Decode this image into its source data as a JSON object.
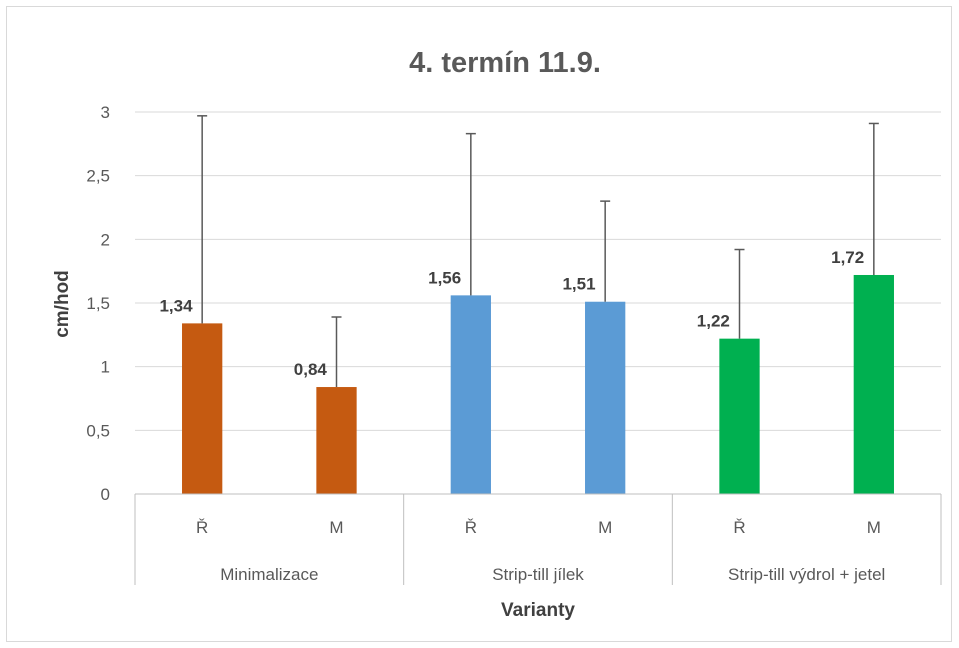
{
  "chart_data": {
    "type": "bar",
    "title": "4. termín 11.9.",
    "xlabel": "Varianty",
    "ylabel": "cm/hod",
    "ylim": [
      0,
      3
    ],
    "yticks": [
      0,
      0.5,
      1,
      1.5,
      2,
      2.5,
      3
    ],
    "ytick_labels": [
      "0",
      "0,5",
      "1",
      "1,5",
      "2",
      "2,5",
      "3"
    ],
    "grid": true,
    "legend": "none",
    "groups": [
      {
        "label": "Minimalizace",
        "color": "#C55A11"
      },
      {
        "label": "Strip-till jílek",
        "color": "#5B9BD5"
      },
      {
        "label": "Strip-till výdrol + jetel",
        "color": "#00B050"
      }
    ],
    "bars": [
      {
        "group": 0,
        "category": "Ř",
        "value": 1.34,
        "value_label": "1,34",
        "error_upper": 2.97
      },
      {
        "group": 0,
        "category": "M",
        "value": 0.84,
        "value_label": "0,84",
        "error_upper": 1.39
      },
      {
        "group": 1,
        "category": "Ř",
        "value": 1.56,
        "value_label": "1,56",
        "error_upper": 2.83
      },
      {
        "group": 1,
        "category": "M",
        "value": 1.51,
        "value_label": "1,51",
        "error_upper": 2.3
      },
      {
        "group": 2,
        "category": "Ř",
        "value": 1.22,
        "value_label": "1,22",
        "error_upper": 1.92
      },
      {
        "group": 2,
        "category": "M",
        "value": 1.72,
        "value_label": "1,72",
        "error_upper": 2.91
      }
    ]
  }
}
